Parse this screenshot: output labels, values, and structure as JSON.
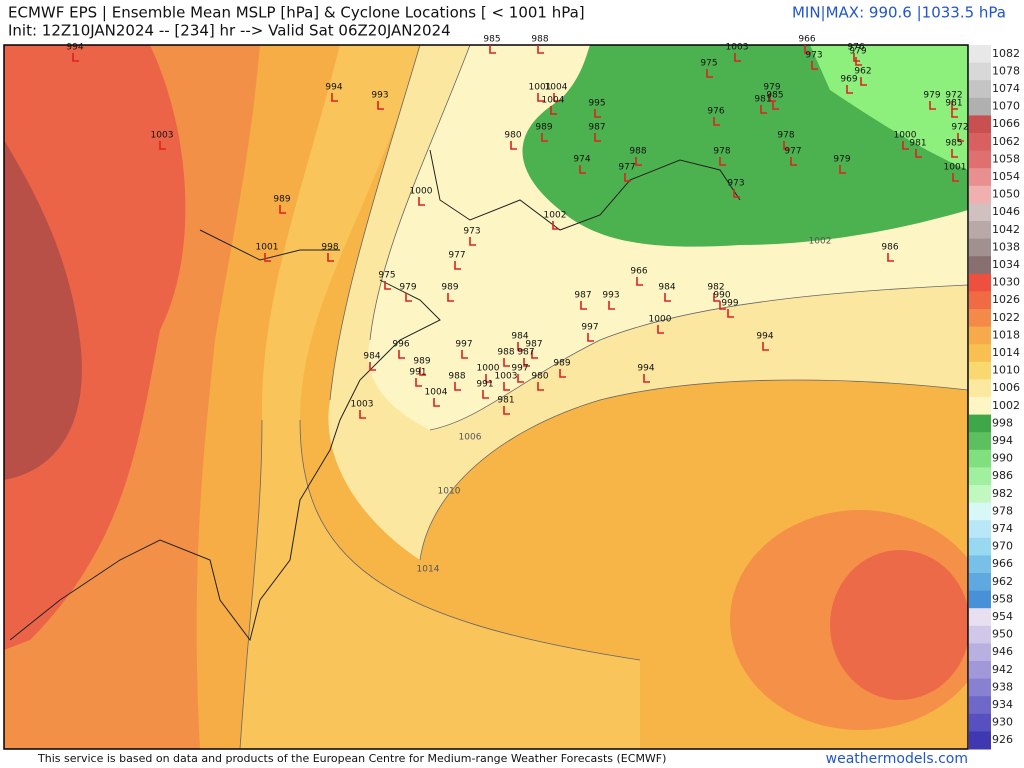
{
  "header": {
    "title": "ECMWF EPS | Ensemble Mean MSLP [hPa] & Cyclone Locations [ < 1001 hPa]",
    "init": "Init: 12Z10JAN2024 -- [234] hr --> Valid Sat 06Z20JAN2024",
    "minmax": "MIN|MAX: 990.6 |1033.5 hPa"
  },
  "footer": {
    "credit": "This service is based on data and products of the European Centre for Medium-range Weather Forecasts (ECMWF)",
    "site": "weathermodels.com"
  },
  "contour_labels": [
    "1002",
    "1006",
    "1010",
    "1014"
  ],
  "colorbar": {
    "labels": [
      "1082",
      "1078",
      "1074",
      "1070",
      "1066",
      "1062",
      "1058",
      "1054",
      "1050",
      "1046",
      "1042",
      "1038",
      "1034",
      "1030",
      "1026",
      "1022",
      "1018",
      "1014",
      "1010",
      "1006",
      "1002",
      "998",
      "994",
      "990",
      "986",
      "982",
      "978",
      "974",
      "970",
      "966",
      "962",
      "958",
      "954",
      "950",
      "946",
      "942",
      "938",
      "934",
      "930",
      "926"
    ]
  },
  "cyclones": [
    "994",
    "1003",
    "994",
    "993",
    "985",
    "988",
    "1003",
    "966",
    "973",
    "976",
    "979",
    "975",
    "962",
    "969",
    "979",
    "985",
    "981",
    "1004",
    "1001",
    "1004",
    "995",
    "976",
    "979",
    "972",
    "981",
    "972",
    "980",
    "989",
    "987",
    "978",
    "1000",
    "981",
    "985",
    "988",
    "978",
    "977",
    "979",
    "974",
    "977",
    "1001",
    "1000",
    "989",
    "973",
    "1002",
    "973",
    "1001",
    "998",
    "977",
    "986",
    "966",
    "975",
    "979",
    "989",
    "984",
    "982",
    "987",
    "993",
    "990",
    "999",
    "1000",
    "997",
    "994",
    "984",
    "987",
    "996",
    "997",
    "988",
    "987",
    "984",
    "989",
    "1000",
    "997",
    "989",
    "994",
    "991",
    "988",
    "1003",
    "980",
    "991",
    "1004",
    "981",
    "1003"
  ]
}
